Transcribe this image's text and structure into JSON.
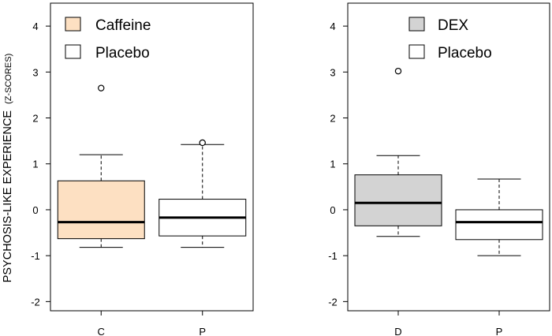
{
  "ylabel": "PSYCHOSIS-LIKE EXPERIENCE",
  "ylabel_units": "(Z-SCORES)",
  "chart_data": [
    {
      "type": "boxplot",
      "ylim": [
        -2.2,
        4.5
      ],
      "yticks": [
        -2,
        -1,
        0,
        1,
        2,
        3,
        4
      ],
      "categories": [
        "C",
        "P"
      ],
      "legend": {
        "position": "top-left",
        "entries": [
          {
            "label": "Caffeine",
            "color": "#fde0c2"
          },
          {
            "label": "Placebo",
            "color": "#ffffff"
          }
        ]
      },
      "boxes": [
        {
          "category": "C",
          "whisker_low": -0.82,
          "q1": -0.63,
          "median": -0.27,
          "q3": 0.63,
          "whisker_high": 1.2,
          "outliers": [
            2.65
          ],
          "fill": "#fde0c2"
        },
        {
          "category": "P",
          "whisker_low": -0.82,
          "q1": -0.57,
          "median": -0.17,
          "q3": 0.23,
          "whisker_high": 1.42,
          "outliers": [
            1.46
          ],
          "fill": "#ffffff"
        }
      ]
    },
    {
      "type": "boxplot",
      "ylim": [
        -2.2,
        4.5
      ],
      "yticks": [
        -2,
        -1,
        0,
        1,
        2,
        3,
        4
      ],
      "categories": [
        "D",
        "P"
      ],
      "legend": {
        "position": "top-right",
        "entries": [
          {
            "label": "DEX",
            "color": "#d3d3d3"
          },
          {
            "label": "Placebo",
            "color": "#ffffff"
          }
        ]
      },
      "boxes": [
        {
          "category": "D",
          "whisker_low": -0.58,
          "q1": -0.35,
          "median": 0.15,
          "q3": 0.76,
          "whisker_high": 1.18,
          "outliers": [
            3.02
          ],
          "fill": "#d3d3d3"
        },
        {
          "category": "P",
          "whisker_low": -1.0,
          "q1": -0.65,
          "median": -0.27,
          "q3": 0.0,
          "whisker_high": 0.67,
          "outliers": [],
          "fill": "#ffffff"
        }
      ]
    }
  ]
}
